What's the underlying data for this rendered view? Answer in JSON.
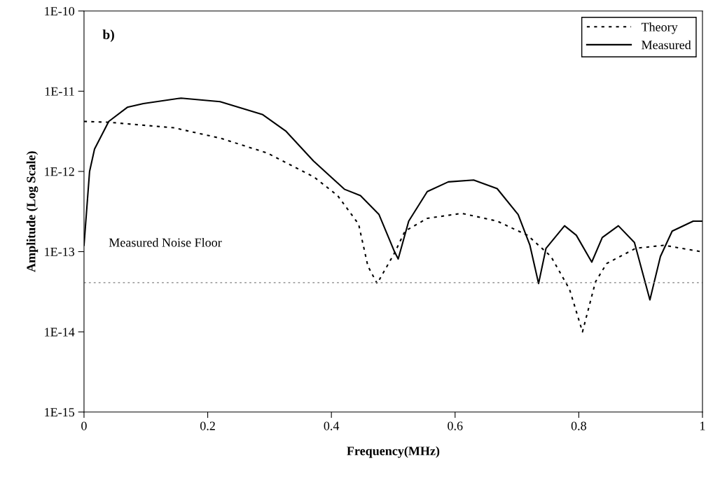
{
  "chart_data": {
    "type": "line",
    "xlabel": "Frequency(MHz)",
    "ylabel": "Amplitude (Log Scale)",
    "annotations": [
      "b)"
    ],
    "log": "y",
    "grid": false,
    "legend": "top right",
    "xlim": [
      0,
      1
    ],
    "xticks": [
      0,
      0.2,
      0.4,
      0.6,
      0.8,
      1
    ],
    "ylim": [
      1e-15,
      1e-10
    ],
    "yticks": [
      {
        "value": 1e-15,
        "label": "1E-15"
      },
      {
        "value": 1e-14,
        "label": "1E-14"
      },
      {
        "value": 1e-13,
        "label": "1E-13"
      },
      {
        "value": 1e-12,
        "label": "1E-12"
      },
      {
        "value": 1e-11,
        "label": "1E-11"
      },
      {
        "value": 1e-10,
        "label": "1E-10"
      }
    ],
    "ref_lines": [
      {
        "axis": "y",
        "value": 4.1e-14,
        "label": "Measured Noise Floor",
        "color": "#808080",
        "line_style": "dotted"
      }
    ],
    "series": [
      {
        "name": "Theory",
        "color": "#000000",
        "line_style": "dotted",
        "x": [
          0,
          0.04,
          0.145,
          0.22,
          0.296,
          0.372,
          0.41,
          0.444,
          0.459,
          0.474,
          0.502,
          0.519,
          0.555,
          0.611,
          0.668,
          0.717,
          0.755,
          0.785,
          0.806,
          0.827,
          0.845,
          0.892,
          0.938,
          0.997
        ],
        "values": [
          4.2e-12,
          4.1e-12,
          3.5e-12,
          2.6e-12,
          1.7e-12,
          8.5e-13,
          5e-13,
          2.2e-13,
          6.6e-14,
          4e-14,
          9.6e-14,
          1.8e-13,
          2.6e-13,
          3e-13,
          2.4e-13,
          1.6e-13,
          8.7e-14,
          3.4e-14,
          1e-14,
          4.2e-14,
          7.1e-14,
          1.1e-13,
          1.2e-13,
          1e-13
        ]
      },
      {
        "name": "Measured",
        "color": "#000000",
        "line_style": "solid",
        "x": [
          0,
          0.009,
          0.017,
          0.04,
          0.07,
          0.096,
          0.157,
          0.22,
          0.289,
          0.326,
          0.371,
          0.421,
          0.447,
          0.477,
          0.502,
          0.508,
          0.525,
          0.555,
          0.589,
          0.63,
          0.668,
          0.702,
          0.721,
          0.735,
          0.747,
          0.777,
          0.796,
          0.821,
          0.838,
          0.864,
          0.89,
          0.915,
          0.932,
          0.951,
          0.985,
          1
        ],
        "values": [
          1.2e-13,
          1e-12,
          1.9e-12,
          4.2e-12,
          6.3e-12,
          7e-12,
          8.2e-12,
          7.4e-12,
          5.1e-12,
          3.2e-12,
          1.35e-12,
          6e-13,
          5e-13,
          2.9e-13,
          1e-13,
          8.1e-14,
          2.4e-13,
          5.6e-13,
          7.4e-13,
          7.8e-13,
          6.1e-13,
          2.9e-13,
          1.2e-13,
          4e-14,
          1.1e-13,
          2.1e-13,
          1.6e-13,
          7.4e-14,
          1.5e-13,
          2.1e-13,
          1.3e-13,
          2.5e-14,
          8.7e-14,
          1.8e-13,
          2.4e-13,
          2.4e-13
        ]
      }
    ]
  }
}
